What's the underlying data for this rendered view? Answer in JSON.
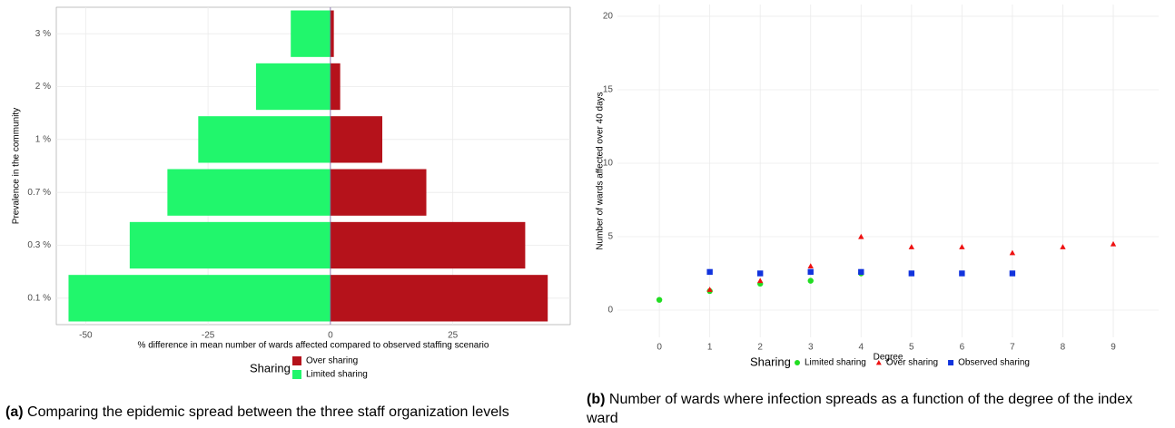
{
  "chart_data": [
    {
      "type": "bar",
      "orientation": "horizontal",
      "categories": [
        "0.1 %",
        "0.3 %",
        "0.7 %",
        "1 %",
        "2 %",
        "3 %"
      ],
      "series": [
        {
          "name": "Over sharing",
          "color": "#b5121b",
          "values": [
            44.4,
            39.8,
            19.6,
            10.6,
            2,
            0.7
          ]
        },
        {
          "name": "Limited sharing",
          "color": "#21f66c",
          "values": [
            -53.5,
            -41,
            -33.3,
            -27,
            -15.2,
            -8.1
          ]
        }
      ],
      "xlim": [
        -56,
        49
      ],
      "xticks": [
        -50,
        -25,
        0,
        25
      ],
      "x_label": "% difference in mean number of wards affected compared to observed staffing scenario",
      "y_label": "Prevalence in the community",
      "legend_title": "Sharing",
      "grid": true
    },
    {
      "type": "scatter",
      "x_label": "Degree",
      "y_label": "Number of wards affected over 40 days",
      "xlim": [
        -0.83,
        9.9
      ],
      "xticks": [
        0,
        1,
        2,
        3,
        4,
        5,
        6,
        7,
        8,
        9
      ],
      "ylim": [
        -1.85,
        20.8
      ],
      "yticks": [
        0,
        5,
        10,
        15,
        20
      ],
      "series": [
        {
          "name": "Limited sharing",
          "color": "#22dd22",
          "marker": "circle",
          "x": [
            0,
            1,
            2,
            3,
            4
          ],
          "values": [
            0.7,
            1.3,
            1.8,
            2.0,
            2.5
          ]
        },
        {
          "name": "Over sharing",
          "color": "#ee1111",
          "marker": "triangle",
          "x": [
            1,
            2,
            3,
            4,
            5,
            6,
            7,
            8,
            9
          ],
          "values": [
            1.4,
            2.0,
            3.0,
            5.0,
            4.3,
            4.3,
            3.9,
            4.3,
            4.5
          ]
        },
        {
          "name": "Observed sharing",
          "color": "#1133dd",
          "marker": "square",
          "x": [
            1,
            2,
            3,
            4,
            5,
            6,
            7
          ],
          "values": [
            2.6,
            2.5,
            2.6,
            2.6,
            2.5,
            2.5,
            2.5
          ]
        }
      ],
      "legend_title": "Sharing",
      "grid": true
    }
  ],
  "captions": [
    {
      "label": "(a)",
      "text": "Comparing the epidemic spread between the three staff organization levels"
    },
    {
      "label": "(b)",
      "text": "Number of wards where infection spreads as a function of the degree of the index ward"
    }
  ]
}
